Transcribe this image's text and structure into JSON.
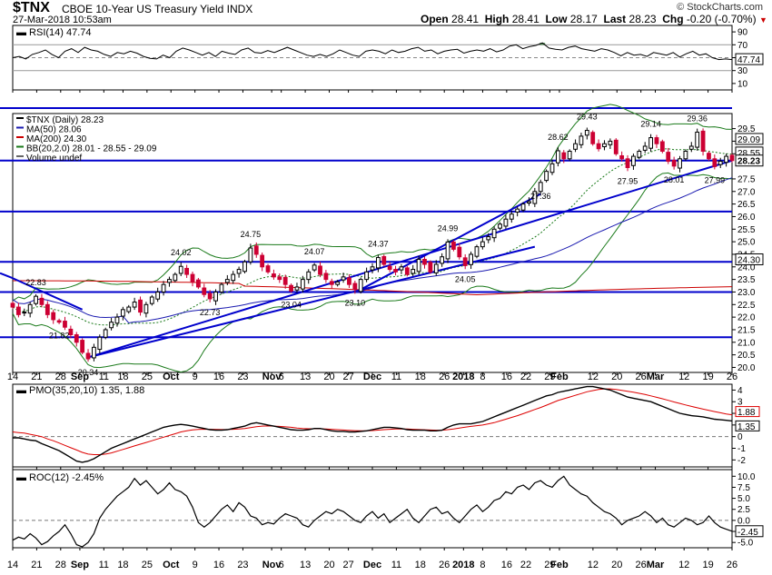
{
  "header": {
    "symbol": "$TNX",
    "name": "CBOE 10-Year US Treasury Yield INDX",
    "datetime": "27-Mar-2018 10:53am",
    "credit": "© StockCharts.com",
    "open_label": "Open",
    "open": "28.41",
    "high_label": "High",
    "high": "28.41",
    "low_label": "Low",
    "low": "28.17",
    "last_label": "Last",
    "last": "28.23",
    "chg_label": "Chg",
    "chg": "-0.20 (-0.70%)"
  },
  "colors": {
    "price_line": "#0000cc",
    "ma50": "#1a1ab0",
    "ma200": "#cc0000",
    "bollinger": "#1a7a1a",
    "up_candle": "#000000",
    "down_candle": "#cc0033",
    "pmo_signal": "#dd0000",
    "rsi_overbought": "#2e7d32"
  },
  "chart_data": [
    {
      "type": "line",
      "panel": "RSI",
      "legend": "RSI(14) 47.74",
      "current_value": "47.74",
      "y_ticks": [
        "90",
        "70",
        "50",
        "30",
        "10"
      ],
      "ylim": [
        0,
        100
      ],
      "reference_lines": [
        70,
        50,
        30
      ],
      "values": [
        50,
        52,
        48,
        55,
        58,
        62,
        55,
        50,
        60,
        64,
        58,
        66,
        62,
        60,
        55,
        52,
        58,
        56,
        60,
        57,
        52,
        49,
        48,
        54,
        50,
        60,
        65,
        62,
        58,
        54,
        58,
        52,
        60,
        57,
        55,
        62,
        65,
        58,
        57,
        61,
        58,
        62,
        66,
        62,
        58,
        54,
        52,
        55,
        52,
        56,
        62,
        58,
        54,
        52,
        60,
        62,
        60,
        56,
        62,
        58,
        60,
        64,
        66,
        60,
        62,
        56,
        60,
        62,
        63,
        57,
        60,
        62,
        60,
        64,
        59,
        62,
        68,
        70,
        64,
        67,
        69,
        73,
        65,
        63,
        62,
        66,
        68,
        64,
        62,
        60,
        64,
        62,
        58,
        53,
        58,
        54,
        55,
        52,
        58,
        56,
        54,
        58,
        51,
        56,
        60,
        54,
        56,
        50,
        47,
        48,
        47
      ]
    },
    {
      "type": "candlestick",
      "panel": "Price",
      "legend": [
        {
          "label": "$TNX (Daily) 28.23",
          "color": "#000000"
        },
        {
          "label": "MA(50) 28.06",
          "color": "#1a1ab0"
        },
        {
          "label": "MA(200) 24.30",
          "color": "#cc0000"
        },
        {
          "label": "BB(20,2.0) 28.01 - 28.55 - 29.09",
          "color": "#1a7a1a"
        },
        {
          "label": "Volume undef",
          "color": "#666666"
        }
      ],
      "y_ticks": [
        "29.5",
        "29.0",
        "28.5",
        "27.5",
        "27.0",
        "26.5",
        "26.0",
        "25.5",
        "25.0",
        "24.5",
        "24.0",
        "23.5",
        "23.0",
        "22.5",
        "22.0",
        "21.5",
        "21.0",
        "20.5",
        "20.0"
      ],
      "ylim": [
        19.8,
        30.1
      ],
      "axis_value_labels": [
        {
          "text": "29.09",
          "value": 29.09
        },
        {
          "text": "28.55",
          "value": 28.55
        },
        {
          "text": "28.23",
          "value": 28.23
        },
        {
          "text": "24.30",
          "value": 24.3
        }
      ],
      "horizontal_lines": [
        28.23,
        26.2,
        24.2,
        23.0,
        21.2
      ],
      "close": [
        22.4,
        22.1,
        22.2,
        22.5,
        22.83,
        22.5,
        22.1,
        21.9,
        21.8,
        21.6,
        21.3,
        21.0,
        20.6,
        20.34,
        20.8,
        21.2,
        21.5,
        21.8,
        22.0,
        22.3,
        22.4,
        22.6,
        22.2,
        22.5,
        22.8,
        23.0,
        23.3,
        23.5,
        23.7,
        24.02,
        23.7,
        23.4,
        23.2,
        22.9,
        22.73,
        23.0,
        23.3,
        23.5,
        23.7,
        23.9,
        24.2,
        24.75,
        24.5,
        24.0,
        23.8,
        23.6,
        23.5,
        23.3,
        23.04,
        23.2,
        23.5,
        23.8,
        24.07,
        23.7,
        23.5,
        23.3,
        23.4,
        23.6,
        23.3,
        23.1,
        23.5,
        23.8,
        24.0,
        24.37,
        24.1,
        23.9,
        23.8,
        24.0,
        23.7,
        23.9,
        24.3,
        24.1,
        23.8,
        24.1,
        24.4,
        24.99,
        24.7,
        24.4,
        24.05,
        24.5,
        24.8,
        25.0,
        25.2,
        25.5,
        25.7,
        25.9,
        26.1,
        26.3,
        26.5,
        26.6,
        27.0,
        27.36,
        27.8,
        28.1,
        28.62,
        28.3,
        28.6,
        28.9,
        29.2,
        29.43,
        28.9,
        28.7,
        28.9,
        29.0,
        28.5,
        28.3,
        27.95,
        28.4,
        28.6,
        28.8,
        29.14,
        28.9,
        28.6,
        28.2,
        28.01,
        28.3,
        28.6,
        28.8,
        29.36,
        28.6,
        28.3,
        27.99,
        28.2,
        28.4,
        28.23
      ],
      "extreme_labels": [
        {
          "text": "22.83",
          "index": 4,
          "pos": "above"
        },
        {
          "text": "21.82",
          "index": 8,
          "pos": "below"
        },
        {
          "text": "20.34",
          "index": 13,
          "pos": "below"
        },
        {
          "text": "24.02",
          "index": 29,
          "pos": "above"
        },
        {
          "text": "22.73",
          "index": 34,
          "pos": "below"
        },
        {
          "text": "24.75",
          "index": 41,
          "pos": "above"
        },
        {
          "text": "23.04",
          "index": 48,
          "pos": "below"
        },
        {
          "text": "24.07",
          "index": 52,
          "pos": "above"
        },
        {
          "text": "23.10",
          "index": 59,
          "pos": "below"
        },
        {
          "text": "24.37",
          "index": 63,
          "pos": "above"
        },
        {
          "text": "24.99",
          "index": 75,
          "pos": "above"
        },
        {
          "text": "24.05",
          "index": 78,
          "pos": "below"
        },
        {
          "text": "27.36",
          "index": 91,
          "pos": "below"
        },
        {
          "text": "28.62",
          "index": 94,
          "pos": "above"
        },
        {
          "text": "29.43",
          "index": 99,
          "pos": "above"
        },
        {
          "text": "27.95",
          "index": 106,
          "pos": "below"
        },
        {
          "text": "29.14",
          "index": 110,
          "pos": "above"
        },
        {
          "text": "28.01",
          "index": 114,
          "pos": "below"
        },
        {
          "text": "29.36",
          "index": 118,
          "pos": "above"
        },
        {
          "text": "27.99",
          "index": 121,
          "pos": "below"
        }
      ],
      "trendlines": [
        {
          "from": [
            0,
            23.55
          ],
          "to": [
            12,
            22.3
          ]
        },
        {
          "from": [
            13,
            20.4
          ],
          "to": [
            124,
            28.23
          ]
        },
        {
          "from": [
            13,
            20.4
          ],
          "to": [
            90,
            24.8
          ]
        },
        {
          "from": [
            60,
            23.1
          ],
          "to": [
            91,
            26.9
          ]
        }
      ]
    },
    {
      "type": "line",
      "panel": "PMO",
      "legend": "PMO(35,20,10) 1.35, 1.88",
      "series": [
        {
          "name": "PMO(35,20,10)",
          "current": "1.35"
        },
        {
          "name": "Signal",
          "current": "1.88"
        }
      ],
      "y_ticks": [
        "4",
        "3",
        "2",
        "1",
        "0",
        "-1",
        "-2"
      ],
      "ylim": [
        -2.6,
        4.5
      ],
      "reference_lines": [
        0
      ],
      "pmo": [
        -0.1,
        -0.1,
        -0.2,
        -0.3,
        -0.35,
        -0.6,
        -0.8,
        -1.0,
        -1.2,
        -1.5,
        -1.8,
        -2.1,
        -2.2,
        -2.1,
        -1.9,
        -1.6,
        -1.3,
        -1.0,
        -0.8,
        -0.6,
        -0.4,
        -0.2,
        0.0,
        0.2,
        0.4,
        0.6,
        0.8,
        0.9,
        1.0,
        1.05,
        1.0,
        0.9,
        0.8,
        0.7,
        0.6,
        0.55,
        0.55,
        0.6,
        0.7,
        0.8,
        0.9,
        1.1,
        1.2,
        1.1,
        1.0,
        0.9,
        0.8,
        0.7,
        0.6,
        0.55,
        0.55,
        0.6,
        0.7,
        0.7,
        0.6,
        0.5,
        0.45,
        0.45,
        0.4,
        0.4,
        0.45,
        0.5,
        0.6,
        0.7,
        0.8,
        0.8,
        0.75,
        0.7,
        0.6,
        0.55,
        0.55,
        0.55,
        0.5,
        0.5,
        0.55,
        0.8,
        1.0,
        1.1,
        1.1,
        1.1,
        1.2,
        1.3,
        1.5,
        1.7,
        1.9,
        2.1,
        2.3,
        2.5,
        2.7,
        2.9,
        3.1,
        3.3,
        3.5,
        3.6,
        3.8,
        3.9,
        4.0,
        4.1,
        4.2,
        4.3,
        4.3,
        4.2,
        4.1,
        4.0,
        3.8,
        3.6,
        3.4,
        3.3,
        3.2,
        3.1,
        3.0,
        2.8,
        2.6,
        2.4,
        2.2,
        2.0,
        1.9,
        1.8,
        1.75,
        1.7,
        1.6,
        1.5,
        1.45,
        1.4,
        1.35
      ],
      "signal": [
        0.4,
        0.35,
        0.3,
        0.2,
        0.1,
        0.0,
        -0.2,
        -0.35,
        -0.55,
        -0.75,
        -0.95,
        -1.15,
        -1.35,
        -1.5,
        -1.55,
        -1.55,
        -1.5,
        -1.4,
        -1.25,
        -1.1,
        -0.95,
        -0.8,
        -0.65,
        -0.5,
        -0.35,
        -0.2,
        -0.05,
        0.1,
        0.25,
        0.4,
        0.5,
        0.58,
        0.62,
        0.64,
        0.63,
        0.62,
        0.61,
        0.61,
        0.63,
        0.65,
        0.7,
        0.78,
        0.85,
        0.9,
        0.92,
        0.9,
        0.88,
        0.84,
        0.8,
        0.74,
        0.7,
        0.68,
        0.68,
        0.68,
        0.66,
        0.63,
        0.6,
        0.57,
        0.54,
        0.51,
        0.5,
        0.5,
        0.52,
        0.56,
        0.6,
        0.63,
        0.65,
        0.66,
        0.65,
        0.63,
        0.61,
        0.59,
        0.57,
        0.55,
        0.55,
        0.6,
        0.66,
        0.74,
        0.82,
        0.88,
        0.94,
        1.0,
        1.1,
        1.2,
        1.35,
        1.5,
        1.65,
        1.8,
        1.97,
        2.15,
        2.33,
        2.5,
        2.7,
        2.9,
        3.1,
        3.25,
        3.4,
        3.55,
        3.7,
        3.85,
        3.95,
        4.05,
        4.1,
        4.1,
        4.05,
        3.98,
        3.9,
        3.82,
        3.72,
        3.62,
        3.5,
        3.38,
        3.25,
        3.12,
        2.98,
        2.85,
        2.72,
        2.6,
        2.48,
        2.36,
        2.25,
        2.15,
        2.05,
        1.95,
        1.88
      ]
    },
    {
      "type": "line",
      "panel": "ROC",
      "legend": "ROC(12) -2.45%",
      "current_value": "-2.45",
      "y_ticks": [
        "10.0",
        "7.5",
        "5.0",
        "2.5",
        "0.0",
        "-2.5",
        "-5.0"
      ],
      "ylim": [
        -6.2,
        11.5
      ],
      "reference_lines": [
        0
      ],
      "values": [
        -4.5,
        -3.8,
        -4.2,
        -3.0,
        -4.0,
        -5.5,
        -4.8,
        -3.5,
        -2.5,
        -1.0,
        -3.0,
        -5.5,
        -6.0,
        -5.0,
        -3.0,
        0.5,
        2.5,
        4.0,
        5.5,
        6.5,
        7.5,
        9.5,
        8.0,
        9.0,
        7.5,
        6.0,
        7.0,
        8.5,
        7.0,
        6.5,
        5.5,
        3.0,
        -0.5,
        -1.5,
        -0.5,
        1.0,
        2.5,
        3.5,
        2.0,
        4.0,
        3.0,
        1.0,
        0.5,
        -1.0,
        -0.5,
        -0.8,
        0.5,
        1.5,
        1.0,
        0.5,
        -1.0,
        -1.5,
        0.0,
        1.0,
        2.0,
        1.5,
        2.5,
        2.0,
        1.0,
        0.0,
        -0.5,
        1.0,
        2.0,
        0.5,
        1.5,
        -0.5,
        0.5,
        1.5,
        2.5,
        0.5,
        -0.5,
        1.0,
        2.5,
        3.0,
        1.5,
        2.0,
        0.5,
        -0.5,
        1.0,
        2.5,
        3.5,
        2.0,
        3.0,
        4.5,
        5.0,
        6.5,
        6.0,
        7.5,
        8.0,
        7.0,
        8.5,
        9.0,
        8.0,
        7.5,
        9.0,
        10.0,
        8.0,
        7.0,
        6.0,
        5.5,
        4.0,
        3.0,
        2.0,
        1.5,
        0.5,
        -1.0,
        0.0,
        0.5,
        1.0,
        2.0,
        1.0,
        -0.5,
        0.5,
        -1.0,
        -1.5,
        -0.5,
        0.5,
        0.0,
        -1.0,
        -0.5,
        1.0,
        -0.5,
        -1.5,
        -2.0,
        -2.45
      ],
      "x_ticks": [
        {
          "label": "14",
          "index": 0
        },
        {
          "label": "21",
          "index": 5
        },
        {
          "label": "28",
          "index": 10
        },
        {
          "label": "Sep",
          "index": 14
        },
        {
          "label": "11",
          "index": 19
        },
        {
          "label": "18",
          "index": 23
        },
        {
          "label": "25",
          "index": 28
        },
        {
          "label": "Oct",
          "index": 33
        },
        {
          "label": "9",
          "index": 38
        },
        {
          "label": "16",
          "index": 43
        },
        {
          "label": "23",
          "index": 48
        },
        {
          "label": "Nov",
          "index": 54
        },
        {
          "label": "6",
          "index": 56
        },
        {
          "label": "13",
          "index": 61
        },
        {
          "label": "20",
          "index": 66
        },
        {
          "label": "27",
          "index": 70
        },
        {
          "label": "Dec",
          "index": 75
        },
        {
          "label": "11",
          "index": 80
        },
        {
          "label": "18",
          "index": 85
        },
        {
          "label": "26",
          "index": 90
        },
        {
          "label": "2018",
          "index": 94
        },
        {
          "label": "8",
          "index": 98
        },
        {
          "label": "16",
          "index": 103
        },
        {
          "label": "22",
          "index": 107
        },
        {
          "label": "29",
          "index": 112
        },
        {
          "label": "Feb",
          "index": 114
        },
        {
          "label": "12",
          "index": 121
        },
        {
          "label": "20",
          "index": 126
        },
        {
          "label": "26",
          "index": 131
        },
        {
          "label": "Mar",
          "index": 134
        },
        {
          "label": "12",
          "index": 140
        },
        {
          "label": "19",
          "index": 145
        },
        {
          "label": "26",
          "index": 150
        }
      ]
    }
  ]
}
